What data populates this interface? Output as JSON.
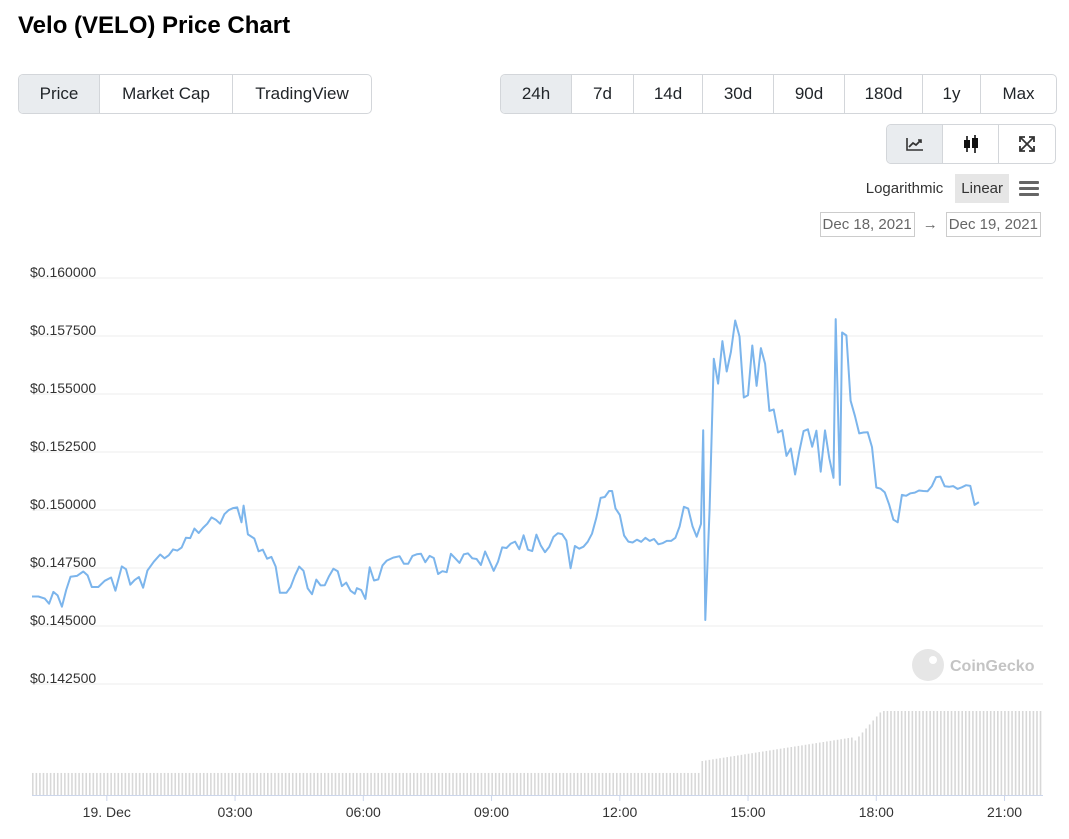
{
  "header": {
    "title": "Velo (VELO) Price Chart"
  },
  "view_tabs": [
    {
      "label": "Price",
      "active": true
    },
    {
      "label": "Market Cap",
      "active": false
    },
    {
      "label": "TradingView",
      "active": false
    }
  ],
  "range_tabs": [
    {
      "label": "24h",
      "active": true
    },
    {
      "label": "7d",
      "active": false
    },
    {
      "label": "14d",
      "active": false
    },
    {
      "label": "30d",
      "active": false
    },
    {
      "label": "90d",
      "active": false
    },
    {
      "label": "180d",
      "active": false
    },
    {
      "label": "1y",
      "active": false
    },
    {
      "label": "Max",
      "active": false
    }
  ],
  "chart_tools": [
    {
      "icon": "line-chart-icon",
      "active": true
    },
    {
      "icon": "candlestick-icon",
      "active": false
    },
    {
      "icon": "fullscreen-icon",
      "active": false
    }
  ],
  "scale": {
    "options": [
      "Logarithmic",
      "Linear"
    ],
    "selected": "Linear"
  },
  "date_range": {
    "from": "Dec 18, 2021",
    "arrow": "→",
    "to": "Dec 19, 2021"
  },
  "watermark": "CoinGecko",
  "colors": {
    "line": "#7cb5ec",
    "volume": "#d8d8d8",
    "active_bg": "#e9ecef"
  },
  "chart_data": {
    "type": "line",
    "title": "",
    "xlabel": "",
    "ylabel": "",
    "x_ticks": [
      "19. Dec",
      "03:00",
      "06:00",
      "09:00",
      "12:00",
      "15:00",
      "18:00",
      "21:00"
    ],
    "x_tick_hours": [
      0,
      3,
      6,
      9,
      12,
      15,
      18,
      21
    ],
    "x_range_hours": [
      -1.75,
      21.9
    ],
    "y_ticks": [
      "$0.142500",
      "$0.145000",
      "$0.147500",
      "$0.150000",
      "$0.152500",
      "$0.155000",
      "$0.157500",
      "$0.160000"
    ],
    "y_tick_values": [
      0.1425,
      0.145,
      0.1475,
      0.15,
      0.1525,
      0.155,
      0.1575,
      0.16
    ],
    "ylim": [
      0.1425,
      0.16
    ],
    "grid": true,
    "series": [
      {
        "points": [
          [
            -1.75,
            0.14627
          ],
          [
            -1.6,
            0.14627
          ],
          [
            -1.45,
            0.14618
          ],
          [
            -1.35,
            0.14596
          ],
          [
            -1.25,
            0.14647
          ],
          [
            -1.15,
            0.14632
          ],
          [
            -1.05,
            0.14583
          ],
          [
            -0.95,
            0.14655
          ],
          [
            -0.85,
            0.14712
          ],
          [
            -0.7,
            0.14716
          ],
          [
            -0.55,
            0.14735
          ],
          [
            -0.45,
            0.14718
          ],
          [
            -0.35,
            0.14668
          ],
          [
            -0.2,
            0.14668
          ],
          [
            -0.05,
            0.14695
          ],
          [
            0.1,
            0.14709
          ],
          [
            0.2,
            0.14652
          ],
          [
            0.35,
            0.14757
          ],
          [
            0.45,
            0.14745
          ],
          [
            0.55,
            0.14678
          ],
          [
            0.65,
            0.14698
          ],
          [
            0.75,
            0.14711
          ],
          [
            0.85,
            0.14665
          ],
          [
            0.95,
            0.14739
          ],
          [
            1.1,
            0.14777
          ],
          [
            1.25,
            0.14808
          ],
          [
            1.35,
            0.14792
          ],
          [
            1.45,
            0.14805
          ],
          [
            1.55,
            0.1483
          ],
          [
            1.65,
            0.14825
          ],
          [
            1.75,
            0.14838
          ],
          [
            1.85,
            0.1488
          ],
          [
            1.95,
            0.14879
          ],
          [
            2.05,
            0.1492
          ],
          [
            2.15,
            0.14901
          ],
          [
            2.25,
            0.14923
          ],
          [
            2.35,
            0.14941
          ],
          [
            2.45,
            0.14968
          ],
          [
            2.55,
            0.14958
          ],
          [
            2.65,
            0.14941
          ],
          [
            2.75,
            0.14982
          ],
          [
            2.85,
            0.14999
          ],
          [
            2.95,
            0.15008
          ],
          [
            3.05,
            0.15011
          ],
          [
            3.15,
            0.14947
          ],
          [
            3.2,
            0.15019
          ],
          [
            3.3,
            0.14895
          ],
          [
            3.45,
            0.14877
          ],
          [
            3.55,
            0.14822
          ],
          [
            3.65,
            0.14829
          ],
          [
            3.75,
            0.1479
          ],
          [
            3.85,
            0.14798
          ],
          [
            3.95,
            0.14756
          ],
          [
            4.05,
            0.14643
          ],
          [
            4.2,
            0.14643
          ],
          [
            4.3,
            0.14668
          ],
          [
            4.4,
            0.14717
          ],
          [
            4.5,
            0.14756
          ],
          [
            4.6,
            0.14738
          ],
          [
            4.7,
            0.14662
          ],
          [
            4.8,
            0.14637
          ],
          [
            4.9,
            0.147
          ],
          [
            5.0,
            0.14675
          ],
          [
            5.1,
            0.14676
          ],
          [
            5.2,
            0.14715
          ],
          [
            5.3,
            0.14747
          ],
          [
            5.4,
            0.14736
          ],
          [
            5.5,
            0.14672
          ],
          [
            5.6,
            0.14687
          ],
          [
            5.7,
            0.14652
          ],
          [
            5.8,
            0.14639
          ],
          [
            5.85,
            0.14663
          ],
          [
            5.95,
            0.14655
          ],
          [
            6.05,
            0.14617
          ],
          [
            6.15,
            0.14753
          ],
          [
            6.25,
            0.14696
          ],
          [
            6.35,
            0.14701
          ],
          [
            6.45,
            0.14761
          ],
          [
            6.55,
            0.14782
          ],
          [
            6.7,
            0.14795
          ],
          [
            6.85,
            0.14801
          ],
          [
            6.95,
            0.14768
          ],
          [
            7.05,
            0.14768
          ],
          [
            7.15,
            0.14802
          ],
          [
            7.25,
            0.14809
          ],
          [
            7.35,
            0.14811
          ],
          [
            7.45,
            0.14775
          ],
          [
            7.55,
            0.14802
          ],
          [
            7.65,
            0.14793
          ],
          [
            7.75,
            0.14724
          ],
          [
            7.85,
            0.14736
          ],
          [
            7.95,
            0.14732
          ],
          [
            8.05,
            0.14811
          ],
          [
            8.15,
            0.14792
          ],
          [
            8.25,
            0.14772
          ],
          [
            8.35,
            0.14809
          ],
          [
            8.45,
            0.14813
          ],
          [
            8.55,
            0.14792
          ],
          [
            8.65,
            0.14789
          ],
          [
            8.75,
            0.14763
          ],
          [
            8.85,
            0.14821
          ],
          [
            8.95,
            0.1478
          ],
          [
            9.05,
            0.14738
          ],
          [
            9.15,
            0.14777
          ],
          [
            9.25,
            0.14839
          ],
          [
            9.35,
            0.14836
          ],
          [
            9.45,
            0.14855
          ],
          [
            9.55,
            0.14864
          ],
          [
            9.65,
            0.14831
          ],
          [
            9.75,
            0.14891
          ],
          [
            9.85,
            0.14829
          ],
          [
            9.95,
            0.14823
          ],
          [
            10.05,
            0.14894
          ],
          [
            10.15,
            0.14848
          ],
          [
            10.25,
            0.14818
          ],
          [
            10.35,
            0.14842
          ],
          [
            10.45,
            0.14884
          ],
          [
            10.55,
            0.149
          ],
          [
            10.65,
            0.14896
          ],
          [
            10.75,
            0.14868
          ],
          [
            10.85,
            0.14749
          ],
          [
            10.95,
            0.14845
          ],
          [
            11.05,
            0.14833
          ],
          [
            11.15,
            0.14842
          ],
          [
            11.25,
            0.14863
          ],
          [
            11.35,
            0.14898
          ],
          [
            11.45,
            0.14966
          ],
          [
            11.55,
            0.15052
          ],
          [
            11.65,
            0.15056
          ],
          [
            11.75,
            0.15082
          ],
          [
            11.82,
            0.15082
          ],
          [
            11.9,
            0.15007
          ],
          [
            12.0,
            0.14979
          ],
          [
            12.1,
            0.1489
          ],
          [
            12.2,
            0.14864
          ],
          [
            12.3,
            0.1486
          ],
          [
            12.4,
            0.14872
          ],
          [
            12.5,
            0.14863
          ],
          [
            12.6,
            0.1488
          ],
          [
            12.7,
            0.14867
          ],
          [
            12.8,
            0.14875
          ],
          [
            12.9,
            0.14852
          ],
          [
            13.0,
            0.14857
          ],
          [
            13.1,
            0.14867
          ],
          [
            13.2,
            0.14867
          ],
          [
            13.3,
            0.1488
          ],
          [
            13.4,
            0.14929
          ],
          [
            13.5,
            0.15014
          ],
          [
            13.6,
            0.15006
          ],
          [
            13.7,
            0.1493
          ],
          [
            13.8,
            0.14885
          ],
          [
            13.9,
            0.1494
          ],
          [
            13.95,
            0.15344
          ],
          [
            14.0,
            0.14526
          ],
          [
            14.1,
            0.15004
          ],
          [
            14.2,
            0.15652
          ],
          [
            14.3,
            0.15545
          ],
          [
            14.4,
            0.15728
          ],
          [
            14.5,
            0.15597
          ],
          [
            14.6,
            0.15681
          ],
          [
            14.7,
            0.15817
          ],
          [
            14.8,
            0.15748
          ],
          [
            14.9,
            0.15485
          ],
          [
            15.0,
            0.15495
          ],
          [
            15.1,
            0.15709
          ],
          [
            15.2,
            0.15535
          ],
          [
            15.3,
            0.15698
          ],
          [
            15.4,
            0.1563
          ],
          [
            15.5,
            0.15427
          ],
          [
            15.6,
            0.15433
          ],
          [
            15.7,
            0.15334
          ],
          [
            15.8,
            0.15344
          ],
          [
            15.9,
            0.15233
          ],
          [
            16.0,
            0.15265
          ],
          [
            16.1,
            0.15153
          ],
          [
            16.2,
            0.15252
          ],
          [
            16.3,
            0.1534
          ],
          [
            16.4,
            0.15348
          ],
          [
            16.5,
            0.15273
          ],
          [
            16.6,
            0.15342
          ],
          [
            16.7,
            0.15165
          ],
          [
            16.8,
            0.15343
          ],
          [
            16.9,
            0.15223
          ],
          [
            17.0,
            0.15139
          ],
          [
            17.05,
            0.15823
          ],
          [
            17.15,
            0.15108
          ],
          [
            17.2,
            0.15765
          ],
          [
            17.3,
            0.15752
          ],
          [
            17.4,
            0.15471
          ],
          [
            17.5,
            0.15406
          ],
          [
            17.6,
            0.1533
          ],
          [
            17.7,
            0.15334
          ],
          [
            17.8,
            0.15335
          ],
          [
            17.9,
            0.15271
          ],
          [
            18.0,
            0.15097
          ],
          [
            18.1,
            0.15092
          ],
          [
            18.2,
            0.15076
          ],
          [
            18.3,
            0.15024
          ],
          [
            18.4,
            0.14958
          ],
          [
            18.5,
            0.14947
          ],
          [
            18.6,
            0.15065
          ],
          [
            18.7,
            0.15061
          ],
          [
            18.8,
            0.15072
          ],
          [
            18.9,
            0.15075
          ],
          [
            19.0,
            0.15084
          ],
          [
            19.1,
            0.15082
          ],
          [
            19.2,
            0.15081
          ],
          [
            19.3,
            0.15103
          ],
          [
            19.4,
            0.15142
          ],
          [
            19.5,
            0.15144
          ],
          [
            19.6,
            0.15102
          ],
          [
            19.7,
            0.151
          ],
          [
            19.8,
            0.15103
          ],
          [
            19.9,
            0.15091
          ],
          [
            20.0,
            0.15098
          ],
          [
            20.1,
            0.15107
          ],
          [
            20.2,
            0.15104
          ],
          [
            20.3,
            0.15022
          ],
          [
            20.4,
            0.15034
          ]
        ]
      }
    ],
    "volume": {
      "segments": [
        {
          "from": -1.75,
          "to": 13.85,
          "level": 0.21
        },
        {
          "from": 13.85,
          "to": 17.45,
          "level_start": 0.32,
          "level_end": 0.55
        },
        {
          "from": 17.45,
          "to": 18.15,
          "level_start": 0.5,
          "level_end": 0.82
        },
        {
          "from": 18.15,
          "to": 21.9,
          "level": 0.8
        }
      ]
    }
  }
}
